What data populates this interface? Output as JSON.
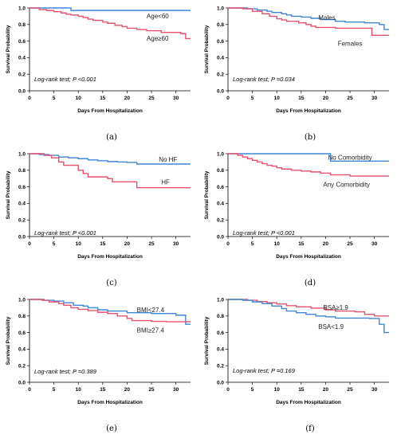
{
  "chart_data": [
    {
      "id": "a",
      "type": "line",
      "step": true,
      "caption": "(a)",
      "ylabel": "Survival Probability",
      "xlabel": "Days From Hospitalization",
      "xlim": [
        0,
        33
      ],
      "ylim": [
        0,
        1.0
      ],
      "xticks": [
        0,
        5,
        10,
        15,
        20,
        25,
        30
      ],
      "yticks": [
        0,
        0.2,
        0.4,
        0.6,
        0.8,
        1.0
      ],
      "ytick_labels": [
        "0.0",
        "0.2",
        "0.4",
        "0.6",
        "0.8",
        "1.0"
      ],
      "annotation": "Log-rank test; P <0.001",
      "series": [
        {
          "name": "Age<60",
          "color": "#3d87d6",
          "label_pos": [
            24.0,
            0.905
          ],
          "points": [
            [
              0,
              1.0
            ],
            [
              8.5,
              1.0
            ],
            [
              8.5,
              0.97
            ],
            [
              33,
              0.97
            ]
          ]
        },
        {
          "name": "Age≥60",
          "color": "#e8506b",
          "label_pos": [
            24.0,
            0.635
          ],
          "points": [
            [
              0,
              1.0
            ],
            [
              2,
              0.98
            ],
            [
              3.5,
              0.97
            ],
            [
              5,
              0.955
            ],
            [
              6.5,
              0.94
            ],
            [
              7.5,
              0.925
            ],
            [
              8.5,
              0.915
            ],
            [
              10,
              0.9
            ],
            [
              11,
              0.885
            ],
            [
              12,
              0.865
            ],
            [
              13,
              0.85
            ],
            [
              15,
              0.83
            ],
            [
              16,
              0.815
            ],
            [
              17.5,
              0.79
            ],
            [
              19,
              0.775
            ],
            [
              20,
              0.755
            ],
            [
              22,
              0.74
            ],
            [
              24,
              0.725
            ],
            [
              27,
              0.705
            ],
            [
              31,
              0.69
            ],
            [
              32,
              0.63
            ],
            [
              33,
              0.63
            ]
          ]
        }
      ]
    },
    {
      "id": "b",
      "type": "line",
      "step": true,
      "caption": "(b)",
      "ylabel": "Survival Probability",
      "xlabel": "Days From Hospitalization",
      "xlim": [
        0,
        33
      ],
      "ylim": [
        0,
        1.0
      ],
      "xticks": [
        0,
        5,
        10,
        15,
        20,
        25,
        30
      ],
      "yticks": [
        0,
        0.2,
        0.4,
        0.6,
        0.8,
        1.0
      ],
      "ytick_labels": [
        "0.0",
        "0.2",
        "0.4",
        "0.6",
        "0.8",
        "1.0"
      ],
      "annotation": "Log-rank test; P =0.034",
      "series": [
        {
          "name": "Males",
          "color": "#3d87d6",
          "label_pos": [
            18.5,
            0.885
          ],
          "points": [
            [
              0,
              1.0
            ],
            [
              4,
              0.99
            ],
            [
              6,
              0.975
            ],
            [
              8,
              0.96
            ],
            [
              9,
              0.945
            ],
            [
              11,
              0.93
            ],
            [
              12,
              0.915
            ],
            [
              13,
              0.9
            ],
            [
              15,
              0.89
            ],
            [
              17,
              0.875
            ],
            [
              19,
              0.86
            ],
            [
              22,
              0.84
            ],
            [
              24,
              0.83
            ],
            [
              28,
              0.82
            ],
            [
              31,
              0.8
            ],
            [
              32,
              0.74
            ],
            [
              33,
              0.74
            ]
          ]
        },
        {
          "name": "Females",
          "color": "#e8506b",
          "label_pos": [
            22.5,
            0.57
          ],
          "points": [
            [
              0,
              1.0
            ],
            [
              3,
              0.99
            ],
            [
              5,
              0.96
            ],
            [
              7,
              0.93
            ],
            [
              8.5,
              0.9
            ],
            [
              10,
              0.87
            ],
            [
              11,
              0.855
            ],
            [
              12,
              0.84
            ],
            [
              14.5,
              0.82
            ],
            [
              16,
              0.8
            ],
            [
              17,
              0.78
            ],
            [
              18,
              0.765
            ],
            [
              22,
              0.755
            ],
            [
              29,
              0.755
            ],
            [
              29.5,
              0.67
            ],
            [
              33,
              0.67
            ]
          ]
        }
      ]
    },
    {
      "id": "c",
      "type": "line",
      "step": true,
      "caption": "(c)",
      "ylabel": "Survival Probability",
      "xlabel": "Days From Hospitalization",
      "xlim": [
        0,
        33
      ],
      "ylim": [
        0,
        1.0
      ],
      "xticks": [
        0,
        5,
        10,
        15,
        20,
        25,
        30
      ],
      "yticks": [
        0,
        0.2,
        0.4,
        0.6,
        0.8,
        1.0
      ],
      "ytick_labels": [
        "0.0",
        "0.2",
        "0.4",
        "0.6",
        "0.8",
        "1.0"
      ],
      "annotation": "Log-rank test; P <0.001",
      "series": [
        {
          "name": "No HF",
          "color": "#3d87d6",
          "label_pos": [
            26.5,
            0.935
          ],
          "points": [
            [
              0,
              1.0
            ],
            [
              2,
              0.99
            ],
            [
              4,
              0.98
            ],
            [
              6,
              0.96
            ],
            [
              8,
              0.95
            ],
            [
              10,
              0.94
            ],
            [
              12,
              0.925
            ],
            [
              14,
              0.915
            ],
            [
              16,
              0.905
            ],
            [
              18,
              0.9
            ],
            [
              20,
              0.895
            ],
            [
              22,
              0.875
            ],
            [
              33,
              0.875
            ]
          ]
        },
        {
          "name": "HF",
          "color": "#e8506b",
          "label_pos": [
            27.0,
            0.66
          ],
          "points": [
            [
              0,
              1.0
            ],
            [
              3,
              0.98
            ],
            [
              4.5,
              0.95
            ],
            [
              6,
              0.9
            ],
            [
              7,
              0.86
            ],
            [
              10,
              0.8
            ],
            [
              11,
              0.76
            ],
            [
              12,
              0.72
            ],
            [
              16,
              0.7
            ],
            [
              17,
              0.66
            ],
            [
              22,
              0.59
            ],
            [
              33,
              0.59
            ]
          ]
        }
      ]
    },
    {
      "id": "d",
      "type": "line",
      "step": true,
      "caption": "(d)",
      "ylabel": "Survival Probability",
      "xlabel": "Days From Hospitalization",
      "xlim": [
        0,
        33
      ],
      "ylim": [
        0,
        1.0
      ],
      "xticks": [
        0,
        5,
        10,
        15,
        20,
        25,
        30
      ],
      "yticks": [
        0,
        0.2,
        0.4,
        0.6,
        0.8,
        1.0
      ],
      "ytick_labels": [
        "0.0",
        "0.2",
        "0.4",
        "0.6",
        "0.8",
        "1.0"
      ],
      "annotation": "Log-rank test; P <0.001",
      "series": [
        {
          "name": "No Comorbidity",
          "color": "#3d87d6",
          "label_pos": [
            20.5,
            0.955
          ],
          "points": [
            [
              0,
              1.0
            ],
            [
              21,
              1.0
            ],
            [
              21,
              0.91
            ],
            [
              33,
              0.91
            ]
          ]
        },
        {
          "name": "Any Comorbidity",
          "color": "#e8506b",
          "label_pos": [
            19.5,
            0.63
          ],
          "points": [
            [
              0,
              1.0
            ],
            [
              2,
              0.98
            ],
            [
              3,
              0.96
            ],
            [
              4,
              0.94
            ],
            [
              5,
              0.92
            ],
            [
              6,
              0.9
            ],
            [
              7,
              0.88
            ],
            [
              8,
              0.86
            ],
            [
              9,
              0.85
            ],
            [
              10,
              0.83
            ],
            [
              11,
              0.815
            ],
            [
              13,
              0.8
            ],
            [
              15,
              0.79
            ],
            [
              17,
              0.78
            ],
            [
              19,
              0.765
            ],
            [
              21,
              0.745
            ],
            [
              25,
              0.73
            ],
            [
              33,
              0.73
            ]
          ]
        }
      ]
    },
    {
      "id": "e",
      "type": "line",
      "step": true,
      "caption": "(e)",
      "ylabel": "Survival Probability",
      "xlabel": "Days From Hospitalization",
      "xlim": [
        0,
        33
      ],
      "ylim": [
        0,
        1.0
      ],
      "xticks": [
        0,
        5,
        10,
        15,
        20,
        25,
        30
      ],
      "yticks": [
        0,
        0.2,
        0.4,
        0.6,
        0.8,
        1.0
      ],
      "ytick_labels": [
        "0.0",
        "0.2",
        "0.4",
        "0.6",
        "0.8",
        "1.0"
      ],
      "annotation": "Log-rank test; P =0.389",
      "series": [
        {
          "name": "BMI<27.4",
          "color": "#3d87d6",
          "label_pos": [
            22.0,
            0.875
          ],
          "points": [
            [
              0,
              1.0
            ],
            [
              3,
              0.99
            ],
            [
              5,
              0.98
            ],
            [
              7,
              0.96
            ],
            [
              9,
              0.93
            ],
            [
              11,
              0.92
            ],
            [
              12,
              0.9
            ],
            [
              14,
              0.875
            ],
            [
              16,
              0.86
            ],
            [
              20,
              0.84
            ],
            [
              25,
              0.83
            ],
            [
              30,
              0.81
            ],
            [
              32,
              0.7
            ],
            [
              33,
              0.7
            ]
          ]
        },
        {
          "name": "BMI≥27.4",
          "color": "#e8506b",
          "label_pos": [
            22.0,
            0.63
          ],
          "points": [
            [
              0,
              1.0
            ],
            [
              2.5,
              0.99
            ],
            [
              4,
              0.97
            ],
            [
              6,
              0.95
            ],
            [
              7,
              0.93
            ],
            [
              8.5,
              0.9
            ],
            [
              10,
              0.88
            ],
            [
              12,
              0.865
            ],
            [
              14,
              0.845
            ],
            [
              16,
              0.83
            ],
            [
              18,
              0.8
            ],
            [
              20,
              0.77
            ],
            [
              21,
              0.745
            ],
            [
              25,
              0.735
            ],
            [
              28,
              0.73
            ],
            [
              33,
              0.73
            ]
          ]
        }
      ]
    },
    {
      "id": "f",
      "type": "line",
      "step": true,
      "caption": "(f)",
      "ylabel": "Survival Probability",
      "xlabel": "Days From Hospitalization",
      "xlim": [
        0,
        33
      ],
      "ylim": [
        0,
        1.0
      ],
      "xticks": [
        0,
        5,
        10,
        15,
        20,
        25,
        30
      ],
      "yticks": [
        0,
        0.2,
        0.4,
        0.6,
        0.8,
        1.0
      ],
      "ytick_labels": [
        "0.0",
        "0.2",
        "0.4",
        "0.6",
        "0.8",
        "1.0"
      ],
      "annotation": "Log-rank test; P =0.169",
      "series": [
        {
          "name": "BSA≥1.9",
          "color": "#e8506b",
          "label_pos": [
            19.5,
            0.905
          ],
          "points": [
            [
              0,
              1.0
            ],
            [
              4,
              0.99
            ],
            [
              6,
              0.975
            ],
            [
              8,
              0.96
            ],
            [
              10,
              0.945
            ],
            [
              12,
              0.925
            ],
            [
              14,
              0.91
            ],
            [
              17,
              0.895
            ],
            [
              20,
              0.875
            ],
            [
              22,
              0.86
            ],
            [
              26,
              0.85
            ],
            [
              28,
              0.82
            ],
            [
              30,
              0.8
            ],
            [
              33,
              0.8
            ]
          ]
        },
        {
          "name": "BSA<1.9",
          "color": "#3d87d6",
          "label_pos": [
            18.5,
            0.675
          ],
          "points": [
            [
              0,
              1.0
            ],
            [
              3,
              0.99
            ],
            [
              5,
              0.97
            ],
            [
              7,
              0.95
            ],
            [
              9,
              0.92
            ],
            [
              11,
              0.89
            ],
            [
              12,
              0.86
            ],
            [
              14,
              0.84
            ],
            [
              16,
              0.82
            ],
            [
              18,
              0.8
            ],
            [
              20,
              0.79
            ],
            [
              22,
              0.775
            ],
            [
              29,
              0.77
            ],
            [
              31,
              0.7
            ],
            [
              32,
              0.6
            ],
            [
              33,
              0.6
            ]
          ]
        }
      ]
    }
  ]
}
